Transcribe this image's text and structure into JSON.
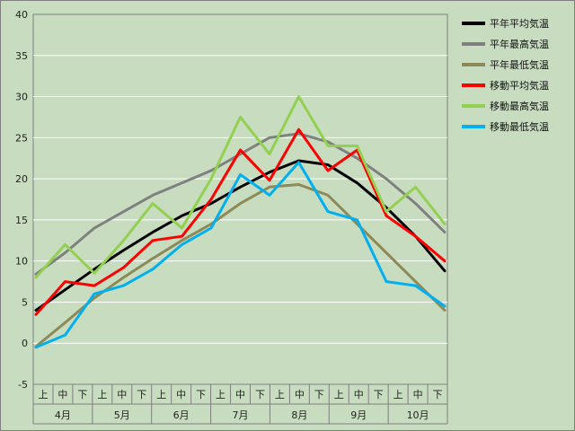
{
  "chart_data": {
    "type": "line",
    "title": "",
    "xlabel": "",
    "ylabel": "",
    "ylim": [
      -5,
      40
    ],
    "y_ticks": [
      -5,
      0,
      5,
      10,
      15,
      20,
      25,
      30,
      35,
      40
    ],
    "grid": true,
    "legend_position": "right",
    "x_period_labels": [
      "上",
      "中",
      "下"
    ],
    "x_month_labels": [
      "4月",
      "5月",
      "6月",
      "7月",
      "8月",
      "9月",
      "10月"
    ],
    "x_start": "4月上旬",
    "x_end": "10月下旬",
    "x_dates_approx": [
      "4/1",
      "4/16",
      "5/1",
      "5/16",
      "6/1",
      "6/16",
      "7/1",
      "7/16",
      "8/1",
      "8/16",
      "9/1",
      "9/16",
      "10/1",
      "10/16",
      "10/31"
    ],
    "series": [
      {
        "name": "平年平均気温",
        "color": "#000000",
        "values": [
          4.0,
          6.5,
          9.0,
          11.3,
          13.5,
          15.5,
          17.0,
          19.0,
          20.8,
          22.2,
          21.7,
          19.5,
          16.5,
          13.0,
          8.8
        ]
      },
      {
        "name": "平年最高気温",
        "color": "#808080",
        "values": [
          8.4,
          11.0,
          14.0,
          16.0,
          18.0,
          19.5,
          21.0,
          23.0,
          25.0,
          25.5,
          24.5,
          22.5,
          20.0,
          17.0,
          13.5
        ]
      },
      {
        "name": "平年最低気温",
        "color": "#8c8a58",
        "values": [
          -0.4,
          2.5,
          5.5,
          8.0,
          10.3,
          12.5,
          14.5,
          17.0,
          19.0,
          19.3,
          18.0,
          14.5,
          11.0,
          7.5,
          4.0
        ]
      },
      {
        "name": "移動平均気温",
        "color": "#ff0000",
        "values": [
          3.5,
          7.5,
          7.0,
          9.2,
          12.5,
          13.0,
          17.5,
          23.5,
          19.8,
          26.0,
          21.0,
          23.5,
          15.5,
          13.0,
          10.0
        ]
      },
      {
        "name": "移動最高気温",
        "color": "#92d050",
        "values": [
          8.0,
          12.0,
          8.5,
          12.5,
          17.0,
          14.0,
          20.0,
          27.5,
          23.0,
          30.0,
          24.0,
          24.0,
          16.0,
          19.0,
          14.5
        ]
      },
      {
        "name": "移動最低気温",
        "color": "#00b0f0",
        "values": [
          -0.5,
          1.0,
          6.0,
          7.0,
          9.0,
          12.0,
          14.0,
          20.5,
          18.0,
          22.0,
          16.0,
          15.0,
          7.5,
          7.0,
          4.5
        ]
      }
    ]
  }
}
